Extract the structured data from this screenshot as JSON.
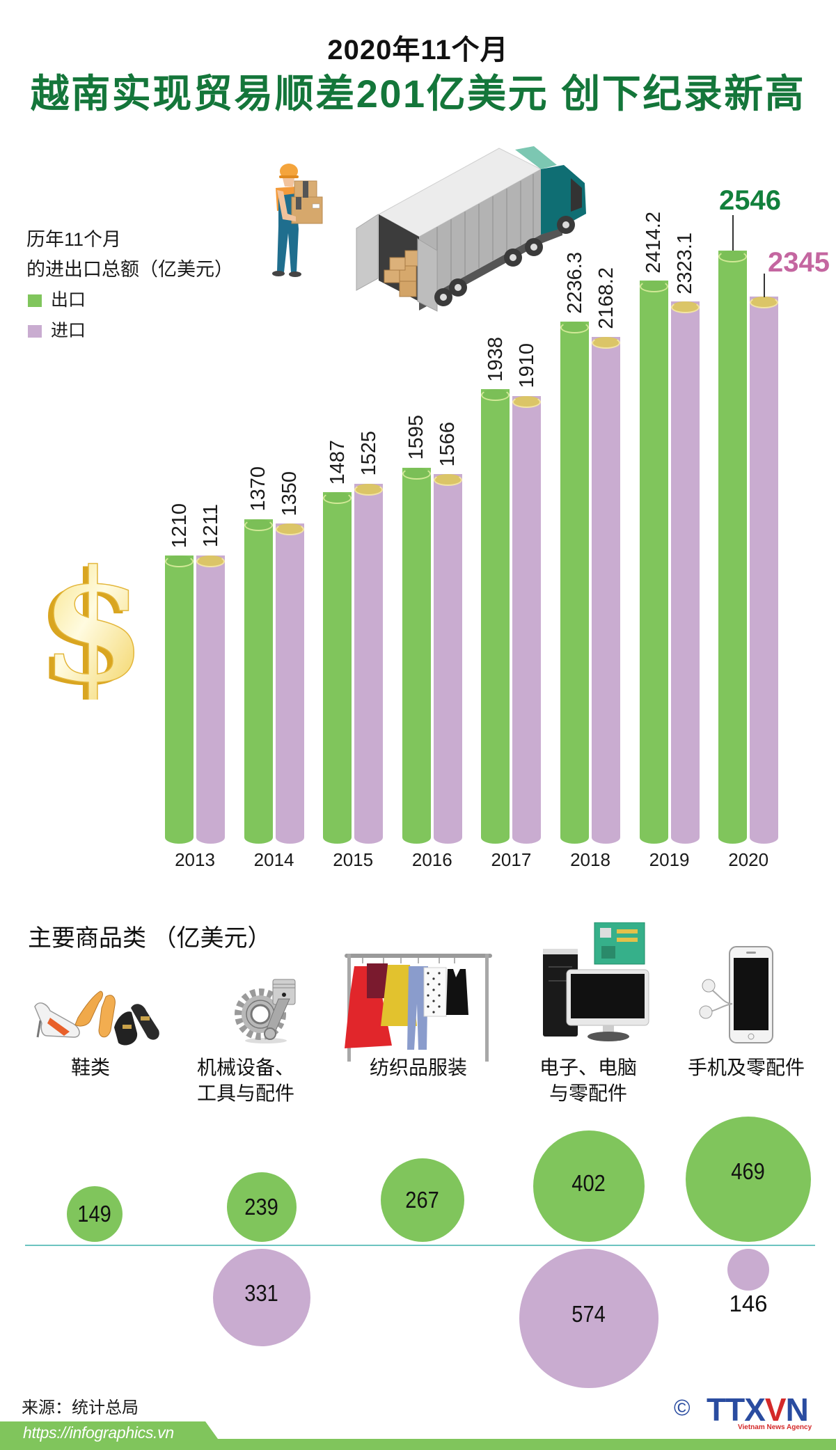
{
  "header": {
    "subtitle": "2020年11个月",
    "title": "越南实现贸易顺差201亿美元 创下纪录新高"
  },
  "legend": {
    "title_line1": "历年11个月",
    "title_line2": "的进出口总额（亿美元）",
    "export_label": "出口",
    "import_label": "进口",
    "export_color": "#80c55c",
    "import_color": "#c9acd0"
  },
  "illustrations": {
    "worker": "worker-carrying-boxes-icon",
    "truck": "delivery-truck-icon",
    "dollar": "gold-dollar-sign-icon"
  },
  "chart_data": [
    {
      "type": "bar",
      "title": "历年11个月的进出口总额（亿美元）",
      "xlabel": "",
      "ylabel": "亿美元",
      "categories": [
        "2013",
        "2014",
        "2015",
        "2016",
        "2017",
        "2018",
        "2019",
        "2020"
      ],
      "series": [
        {
          "name": "出口",
          "color": "#80c55c",
          "values": [
            1210,
            1370,
            1487,
            1595,
            1938,
            2236.3,
            2414.2,
            2546
          ]
        },
        {
          "name": "进口",
          "color": "#c9acd0",
          "values": [
            1211,
            1350,
            1525,
            1566,
            1910,
            2168.2,
            2323.1,
            2345
          ]
        }
      ],
      "ylim": [
        0,
        2600
      ],
      "grid": false,
      "legend_position": "top-left",
      "highlight": {
        "category": "2020",
        "export_label": "2546",
        "import_label": "2345",
        "export_color": "#12803c",
        "import_color": "#c466a0"
      }
    },
    {
      "type": "bubble",
      "title": "主要商品类 （亿美元）",
      "categories": [
        "鞋类",
        "机械设备、工具与配件",
        "纺织品服装",
        "电子、电脑与零配件",
        "手机及零配件"
      ],
      "series": [
        {
          "name": "出口",
          "color": "#80c55c",
          "values": [
            149,
            239,
            267,
            402,
            469
          ]
        },
        {
          "name": "进口",
          "color": "#c9acd0",
          "values": [
            null,
            331,
            null,
            574,
            146
          ]
        }
      ]
    }
  ],
  "products": {
    "title": "主要商品类 （亿美元）",
    "items": [
      {
        "icon": "shoes-icon",
        "lines": [
          "鞋类"
        ]
      },
      {
        "icon": "machinery-gear-icon",
        "lines": [
          "机械设备、",
          "工具与配件"
        ]
      },
      {
        "icon": "clothes-rack-icon",
        "lines": [
          "纺织品服装"
        ]
      },
      {
        "icon": "computer-icon",
        "lines": [
          "电子、电脑",
          "与零配件"
        ]
      },
      {
        "icon": "smartphone-icon",
        "lines": [
          "手机及零配件"
        ]
      }
    ]
  },
  "source": "来源：统计总局",
  "footer": {
    "url": "https://infographics.vn",
    "bar_color": "#80c55c",
    "logo": {
      "copyright": "©",
      "name_a": "TTX",
      "name_b": "V",
      "name_c": "N",
      "tagline": "Vietnam News Agency"
    }
  }
}
